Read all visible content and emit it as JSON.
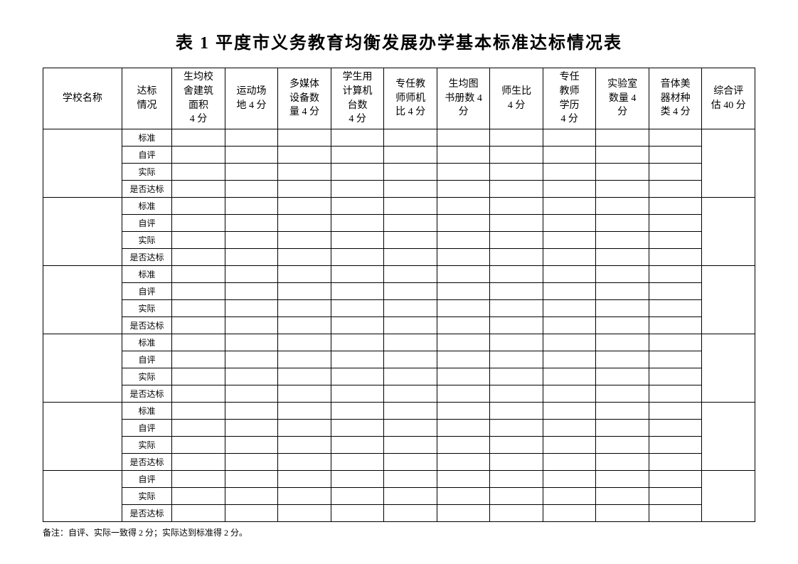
{
  "title": "表 1  平度市义务教育均衡发展办学基本标准达标情况表",
  "headers": {
    "school_name": "学校名称",
    "status": "达标\n情况",
    "m1": "生均校\n舍建筑\n面积\n4 分",
    "m2": "运动场\n地 4 分",
    "m3": "多媒体\n设备数\n量 4 分",
    "m4": "学生用\n计算机\n台数\n4 分",
    "m5": "专任教\n师师机\n比 4 分",
    "m6": "生均图\n书册数 4\n分",
    "m7": "师生比\n4 分",
    "m8": "专任\n教师\n学历\n4 分",
    "m9": "实验室\n数量 4\n分",
    "m10": "音体美\n器材种\n类 4 分",
    "total": "综合评\n估 40 分"
  },
  "status_labels": {
    "standard": "标准",
    "self": "自评",
    "actual": "实际",
    "meets": "是否达标"
  },
  "footnote": "备注：自评、实际一致得 2 分；实际达到标准得 2 分。",
  "full_groups": 5,
  "partial_group_statuses": [
    "self",
    "actual",
    "meets"
  ]
}
